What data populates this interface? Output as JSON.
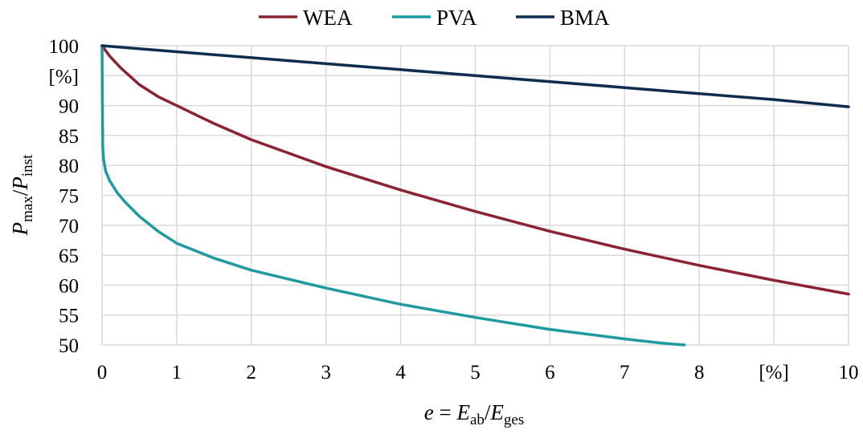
{
  "chart_data": {
    "type": "line",
    "legend_position": "top",
    "grid": true,
    "xlim": [
      0,
      10
    ],
    "ylim": [
      50,
      100
    ],
    "x_ticks": [
      "0",
      "1",
      "2",
      "3",
      "4",
      "5",
      "6",
      "7",
      "8",
      "[%]",
      "10"
    ],
    "y_ticks": [
      "100",
      "[%]",
      "90",
      "85",
      "80",
      "75",
      "70",
      "65",
      "60",
      "55",
      "50"
    ],
    "xlabel": {
      "main": "e",
      "eq": " = ",
      "var1": "E",
      "sub1": "ab",
      "slash": "/",
      "var2": "E",
      "sub2": "ges"
    },
    "ylabel": {
      "var1": "P",
      "sub1": "max",
      "slash": "/",
      "var2": "P",
      "sub2": "inst"
    },
    "series": [
      {
        "name": "WEA",
        "color": "#8b2332",
        "x": [
          0,
          0.1,
          0.25,
          0.5,
          0.75,
          1,
          1.5,
          2,
          3,
          4,
          5,
          6,
          7,
          8,
          9,
          10
        ],
        "y": [
          100,
          98.3,
          96.3,
          93.5,
          91.5,
          90,
          87,
          84.3,
          79.8,
          75.9,
          72.3,
          69,
          66,
          63.3,
          60.8,
          58.5
        ]
      },
      {
        "name": "PVA",
        "color": "#1f9aa1",
        "x": [
          0,
          0.003,
          0.006,
          0.01,
          0.02,
          0.05,
          0.1,
          0.2,
          0.3,
          0.5,
          0.75,
          1,
          1.5,
          2,
          3,
          4,
          5,
          6,
          7,
          7.5,
          7.8
        ],
        "y": [
          100,
          93,
          88,
          83,
          81,
          79,
          77.5,
          75.5,
          74,
          71.5,
          69,
          67,
          64.5,
          62.5,
          59.5,
          56.8,
          54.6,
          52.6,
          51,
          50.3,
          50
        ]
      },
      {
        "name": "BMA",
        "color": "#0e2d4e",
        "x": [
          0,
          1,
          2,
          3,
          4,
          5,
          6,
          7,
          8,
          9,
          10
        ],
        "y": [
          100,
          99,
          98,
          97,
          96,
          95,
          94,
          93,
          92,
          91,
          89.8
        ]
      }
    ]
  }
}
